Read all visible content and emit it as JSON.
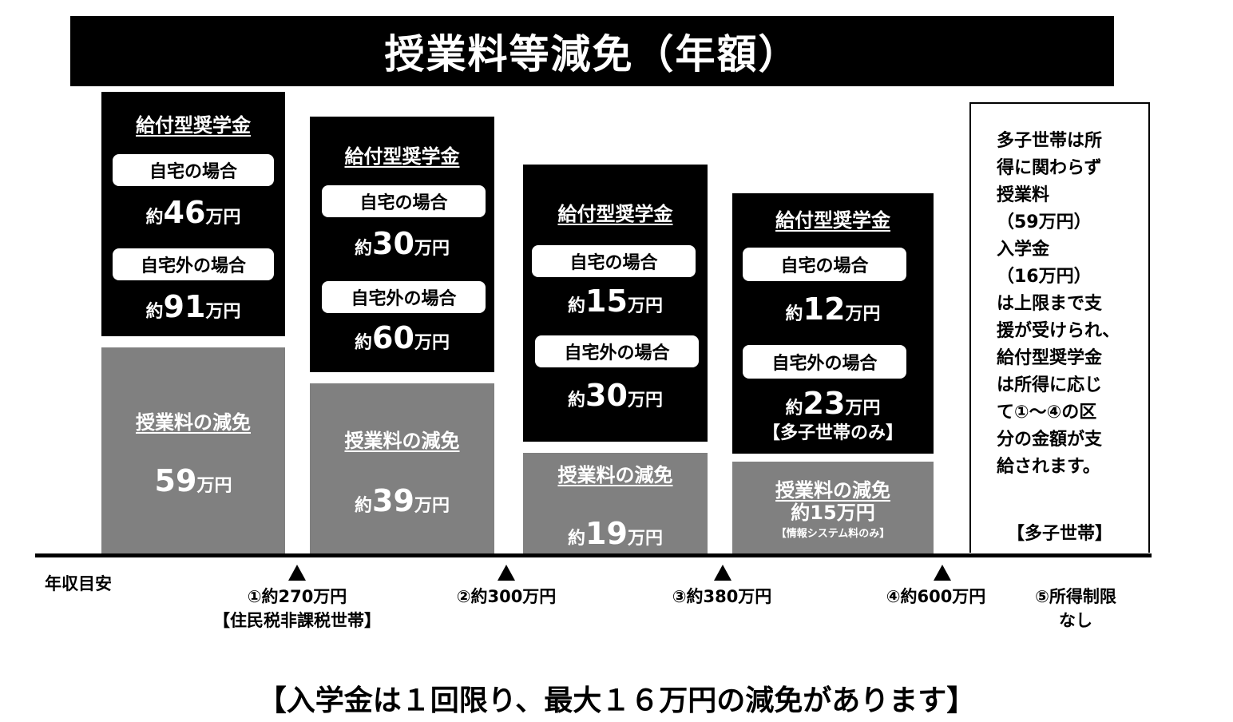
{
  "title": "授業料等減免（年額）",
  "columns": [
    {
      "scholarship_heading": "給付型奨学金",
      "home_label": "自宅の場合",
      "home_prefix": "約",
      "home_value": "46",
      "home_unit": "万円",
      "away_label": "自宅外の場合",
      "away_prefix": "約",
      "away_value": "91",
      "away_unit": "万円",
      "tuition_heading": "授業料の減免",
      "tuition_prefix": "",
      "tuition_value": "59",
      "tuition_unit": "万円"
    },
    {
      "scholarship_heading": "給付型奨学金",
      "home_label": "自宅の場合",
      "home_prefix": "約",
      "home_value": "30",
      "home_unit": "万円",
      "away_label": "自宅外の場合",
      "away_prefix": "約",
      "away_value": "60",
      "away_unit": "万円",
      "tuition_heading": "授業料の減免",
      "tuition_prefix": "約",
      "tuition_value": "39",
      "tuition_unit": "万円"
    },
    {
      "scholarship_heading": "給付型奨学金",
      "home_label": "自宅の場合",
      "home_prefix": "約",
      "home_value": "15",
      "home_unit": "万円",
      "away_label": "自宅外の場合",
      "away_prefix": "約",
      "away_value": "30",
      "away_unit": "万円",
      "tuition_heading": "授業料の減免",
      "tuition_prefix": "約",
      "tuition_value": "19",
      "tuition_unit": "万円"
    },
    {
      "scholarship_heading": "給付型奨学金",
      "home_label": "自宅の場合",
      "home_prefix": "約",
      "home_value": "12",
      "home_unit": "万円",
      "away_label": "自宅外の場合",
      "away_prefix": "約",
      "away_value": "23",
      "away_unit": "万円",
      "away_note": "【多子世帯のみ】",
      "tuition_heading": "授業料の減免",
      "tuition_amount": "約15万円",
      "tuition_note": "【情報システム料のみ】"
    }
  ],
  "note": {
    "lines": [
      "多子世帯は所",
      "得に関わらず",
      "授業料",
      "（59万円）",
      "入学金",
      "（16万円）",
      "は上限まで支",
      "援が受けられ、",
      "給付型奨学金",
      "は所得に応じ",
      "て①～④の区",
      "分の金額が支",
      "給されます。"
    ],
    "tag": "【多子世帯】"
  },
  "axis": {
    "label": "年収目安",
    "ticks": [
      {
        "label": "①約270万円",
        "sub": "【住民税非課税世帯】"
      },
      {
        "label": "②約300万円"
      },
      {
        "label": "③約380万円"
      },
      {
        "label": "④約600万円"
      },
      {
        "label": "⑤所得制限",
        "sub": "なし"
      }
    ]
  },
  "footer": "【入学金は１回限り、最大１６万円の減免があります】"
}
